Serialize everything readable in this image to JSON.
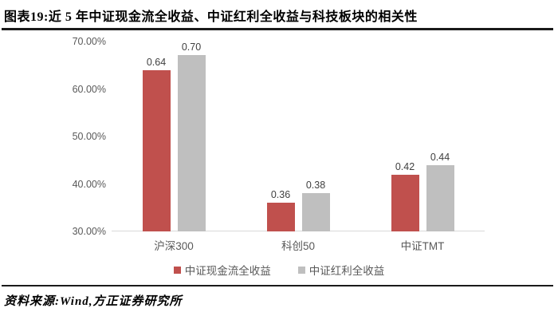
{
  "header": {
    "title": "图表19:近 5 年中证现金流全收益、中证红利全收益与科技板块的相关性"
  },
  "chart_data": {
    "type": "bar",
    "title": "图表19:近 5 年中证现金流全收益、中证红利全收益与科技板块的相关性",
    "categories": [
      "沪深300",
      "科创50",
      "中证TMT"
    ],
    "series": [
      {
        "name": "中证现金流全收益",
        "color": "#C0504D",
        "values": [
          0.64,
          0.36,
          0.42
        ],
        "labels": [
          "0.64",
          "0.36",
          "0.42"
        ]
      },
      {
        "name": "中证红利全收益",
        "color": "#BFBFBF",
        "values": [
          0.7,
          0.38,
          0.44
        ],
        "labels": [
          "0.70",
          "0.38",
          "0.44"
        ]
      }
    ],
    "ylim": [
      0.3,
      0.7
    ],
    "yticks": [
      "70.00%",
      "60.00%",
      "50.00%",
      "40.00%",
      "30.00%"
    ],
    "grid": false,
    "legend_position": "bottom",
    "colors": {
      "bar_red": "#C0504D",
      "bar_gray": "#BFBFBF",
      "axis_text": "#595959",
      "value_text": "#404040",
      "baseline": "#d9d9d9",
      "rule": "#1a1a1a"
    }
  },
  "footer": {
    "source": "资料来源:Wind,方正证券研究所"
  }
}
